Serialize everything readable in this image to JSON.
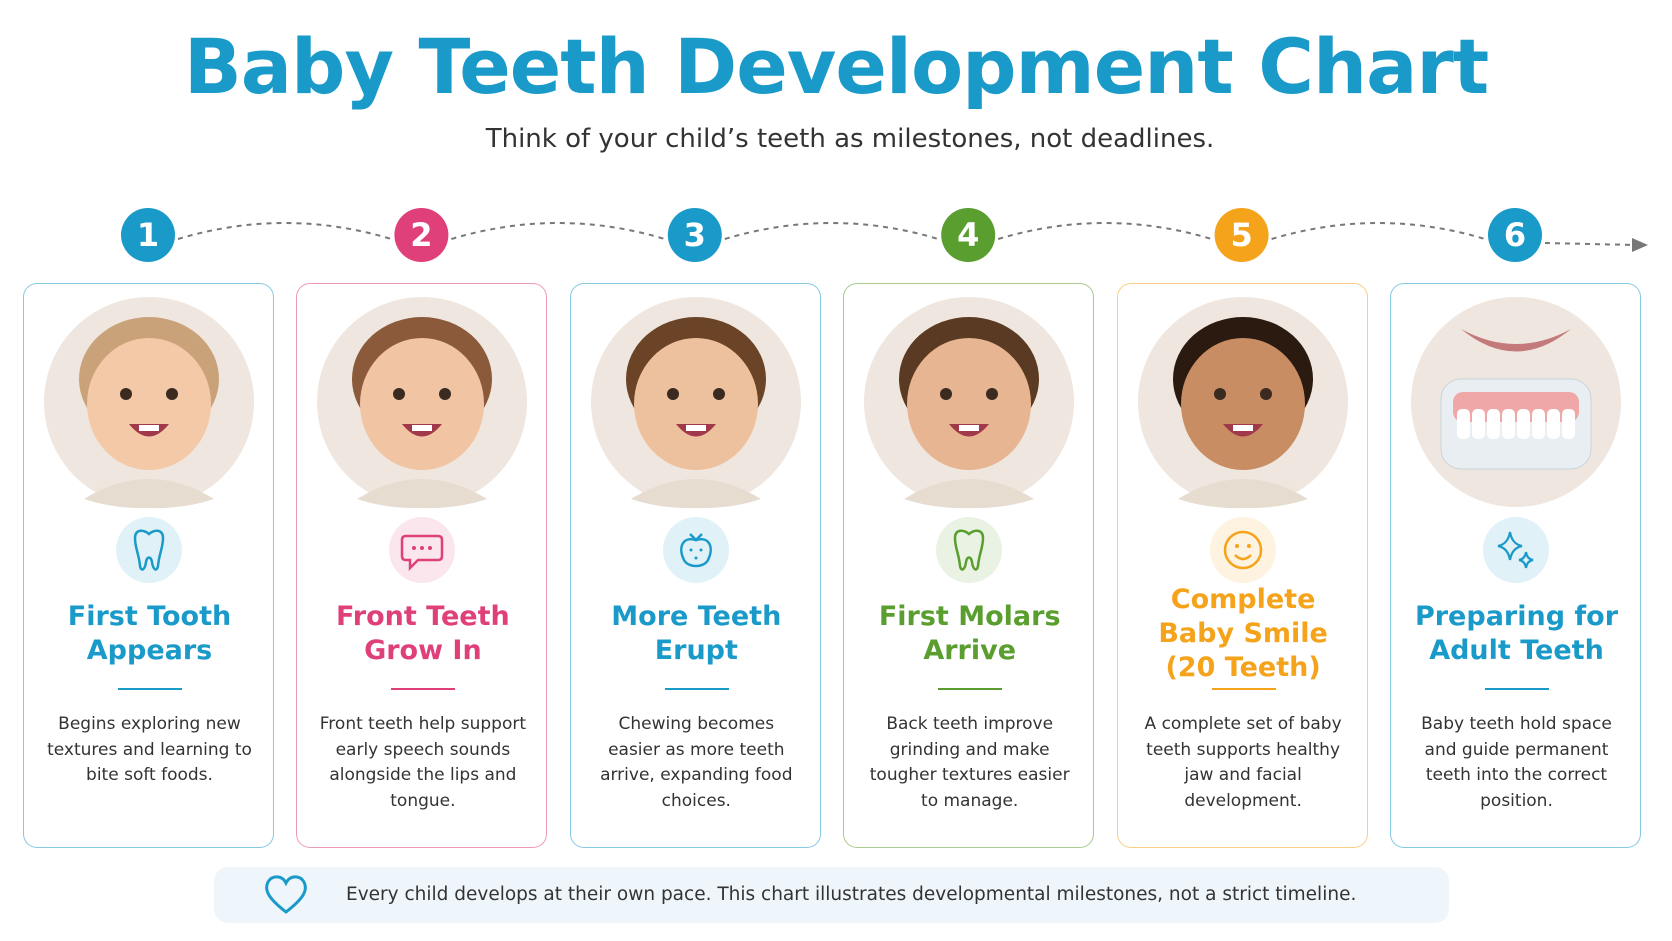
{
  "header": {
    "title": "Baby Teeth Development Chart",
    "subtitle": "Think of your child’s teeth as milestones, not deadlines."
  },
  "steps": [
    {
      "number": 1,
      "color": "#1a9ac9",
      "title": "First Tooth Appears",
      "text": "Begins exploring new textures and learning to bite soft foods."
    },
    {
      "number": 2,
      "color": "#e0407a",
      "title": "Front Teeth Grow In",
      "text": "Front teeth help support early speech sounds alongside the lips and tongue."
    },
    {
      "number": 3,
      "color": "#1a9ac9",
      "title": "More Teeth Erupt",
      "text": "Chewing becomes easier as more teeth arrive, expanding food choices."
    },
    {
      "number": 4,
      "color": "#5a9e2f",
      "title": "First Molars Arrive",
      "text": "Back teeth improve grinding and make tougher textures easier to manage."
    },
    {
      "number": 5,
      "color": "#f5a31a",
      "title": "Complete Baby Smile (20 Teeth)",
      "text": "A complete set of baby teeth supports healthy jaw and facial development."
    },
    {
      "number": 6,
      "color": "#1a9ac9",
      "title": "Preparing for Adult Teeth",
      "text": "Baby teeth hold space and guide permanent teeth into the correct position."
    }
  ],
  "footer": {
    "note": "Every child develops at their own pace. This chart illustrates developmental milestones, not a strict timeline."
  }
}
